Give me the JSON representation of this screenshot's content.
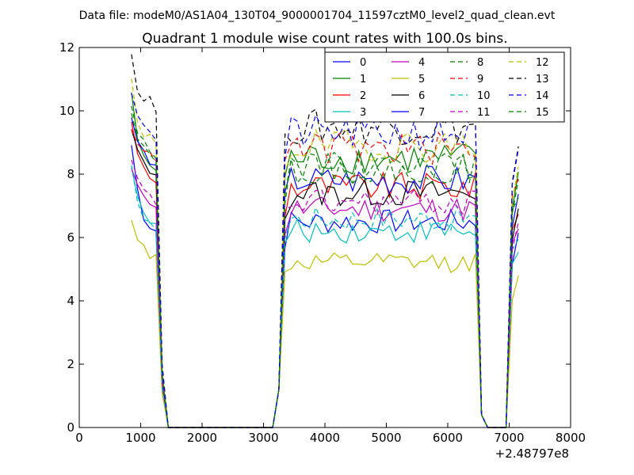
{
  "suptitle": "Data file: modeM0/AS1A04_130T04_9000001704_11597cztM0_level2_quad_clean.evt",
  "chart_data": {
    "type": "line",
    "title": "Quadrant 1 module wise count rates with 100.0s bins.",
    "xlabel": "",
    "ylabel": "",
    "x_offset_label": "+2.48797e8",
    "xlim": [
      0,
      8000
    ],
    "ylim": [
      0,
      12
    ],
    "xticks": [
      0,
      1000,
      2000,
      3000,
      4000,
      5000,
      6000,
      7000,
      8000
    ],
    "yticks": [
      0,
      2,
      4,
      6,
      8,
      10,
      12
    ],
    "legend_position": "top-right",
    "legend_columns": 4,
    "series": [
      {
        "name": "0",
        "color": "#0000ff",
        "dash": "solid",
        "base": 6.5,
        "early": [
          8.9,
          7.6,
          6.6,
          6.3,
          6.2
        ]
      },
      {
        "name": "1",
        "color": "#008000",
        "dash": "solid",
        "base": 8.5,
        "early": [
          10.6,
          9.0,
          8.6,
          8.3,
          8.1
        ]
      },
      {
        "name": "2",
        "color": "#ff0000",
        "dash": "solid",
        "base": 7.6,
        "early": [
          9.7,
          8.6,
          8.2,
          7.9,
          7.7
        ]
      },
      {
        "name": "3",
        "color": "#00bfbf",
        "dash": "solid",
        "base": 6.2,
        "early": [
          8.3,
          7.3,
          6.7,
          6.5,
          6.4
        ]
      },
      {
        "name": "4",
        "color": "#bf00bf",
        "dash": "solid",
        "base": 6.9,
        "early": [
          8.1,
          7.7,
          7.4,
          7.1,
          6.9
        ]
      },
      {
        "name": "5",
        "color": "#bfbf00",
        "dash": "solid",
        "base": 5.2,
        "early": [
          6.5,
          6.0,
          5.8,
          5.4,
          5.4
        ]
      },
      {
        "name": "6",
        "color": "#000000",
        "dash": "solid",
        "base": 7.4,
        "early": [
          9.4,
          8.7,
          8.4,
          8.1,
          7.9
        ]
      },
      {
        "name": "7",
        "color": "#0000ff",
        "dash": "solid",
        "base": 7.8,
        "early": [
          9.8,
          9.0,
          8.7,
          8.4,
          8.2
        ]
      },
      {
        "name": "8",
        "color": "#008000",
        "dash": "dashed",
        "base": 8.2,
        "early": [
          10.2,
          9.3,
          9.0,
          8.8,
          8.6
        ]
      },
      {
        "name": "9",
        "color": "#ff0000",
        "dash": "dashed",
        "base": 8.8,
        "early": [
          9.5,
          9.0,
          8.8,
          8.6,
          8.5
        ]
      },
      {
        "name": "10",
        "color": "#00bfbf",
        "dash": "dashed",
        "base": 6.6,
        "early": [
          8.2,
          7.2,
          6.6,
          6.4,
          6.3
        ]
      },
      {
        "name": "11",
        "color": "#bf00bf",
        "dash": "dashed",
        "base": 7.1,
        "early": [
          8.4,
          7.8,
          7.5,
          7.3,
          7.1
        ]
      },
      {
        "name": "12",
        "color": "#bfbf00",
        "dash": "dashed",
        "base": 8.9,
        "early": [
          11.0,
          9.6,
          9.1,
          9.2,
          9.0
        ]
      },
      {
        "name": "13",
        "color": "#000000",
        "dash": "dashed",
        "base": 9.5,
        "early": [
          11.8,
          10.6,
          10.4,
          10.4,
          10.0
        ]
      },
      {
        "name": "14",
        "color": "#0000ff",
        "dash": "dashed",
        "base": 9.3,
        "early": [
          10.6,
          9.9,
          9.6,
          9.3,
          9.1
        ]
      },
      {
        "name": "15",
        "color": "#008000",
        "dash": "dashed",
        "base": 8.2,
        "early": [
          10.0,
          9.2,
          8.9,
          8.6,
          8.4
        ]
      }
    ]
  }
}
